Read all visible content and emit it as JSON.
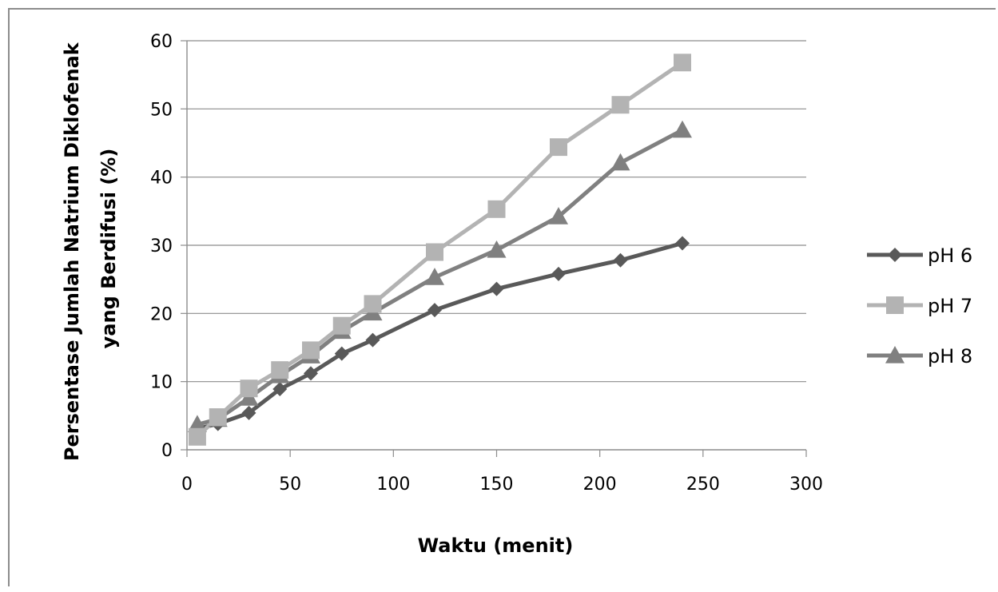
{
  "chart_data": {
    "type": "line",
    "xlabel": "Waktu (menit)",
    "ylabel_lines": [
      "Persentase Jumlah Natrium Diklofenak",
      "yang Berdifusi (%)"
    ],
    "xlim": [
      0,
      300
    ],
    "ylim": [
      0,
      60
    ],
    "x_ticks": [
      0,
      50,
      100,
      150,
      200,
      250,
      300
    ],
    "y_ticks": [
      0,
      10,
      20,
      30,
      40,
      50,
      60
    ],
    "x_tick_labels": [
      "0",
      "50",
      "100",
      "150",
      "200",
      "250",
      "300"
    ],
    "y_tick_labels": [
      "0",
      "10",
      "20",
      "30",
      "40",
      "50",
      "60"
    ],
    "grid": "horizontal",
    "legend_position": "right",
    "series": [
      {
        "name": "pH 6",
        "color": "#595959",
        "marker": "diamond",
        "x": [
          5,
          15,
          30,
          45,
          60,
          75,
          90,
          120,
          150,
          180,
          210,
          240
        ],
        "y": [
          3.1,
          3.8,
          5.4,
          8.9,
          11.2,
          14.1,
          16.1,
          20.5,
          23.6,
          25.8,
          27.8,
          30.3
        ]
      },
      {
        "name": "pH 7",
        "color": "#b3b3b3",
        "marker": "square",
        "x": [
          5,
          15,
          30,
          45,
          60,
          75,
          90,
          120,
          150,
          180,
          210,
          240
        ],
        "y": [
          1.9,
          4.8,
          9.0,
          11.7,
          14.6,
          18.2,
          21.4,
          29.0,
          35.3,
          44.4,
          50.6,
          56.8
        ]
      },
      {
        "name": "pH 8",
        "color": "#808080",
        "marker": "triangle",
        "x": [
          5,
          15,
          30,
          45,
          60,
          75,
          90,
          120,
          150,
          180,
          210,
          240
        ],
        "y": [
          3.7,
          4.5,
          7.6,
          10.9,
          13.8,
          17.4,
          20.1,
          25.3,
          29.3,
          34.2,
          42.1,
          46.9
        ]
      }
    ]
  }
}
